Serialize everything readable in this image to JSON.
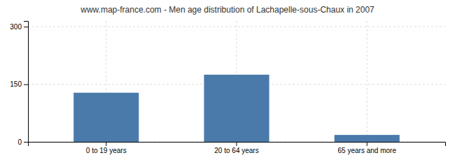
{
  "chart_data": {
    "type": "bar",
    "title": "www.map-france.com - Men age distribution of Lachapelle-sous-Chaux in 2007",
    "categories": [
      "0 to 19 years",
      "20 to 64 years",
      "65 years and more"
    ],
    "values": [
      128,
      175,
      18
    ],
    "color": "#4a7aaa",
    "ylim": [
      0,
      315
    ],
    "yticks": [
      0,
      150,
      300
    ],
    "grid": true
  }
}
